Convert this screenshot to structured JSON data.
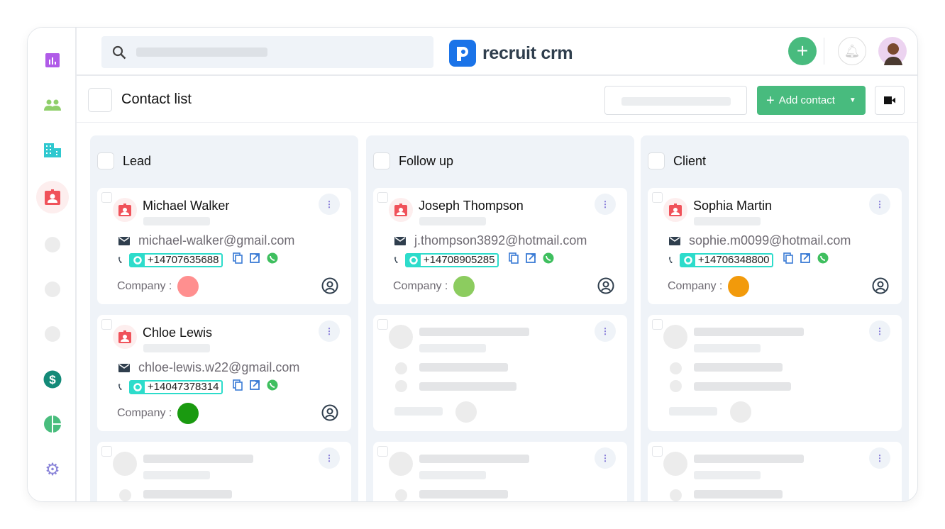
{
  "app": {
    "name": "recruit crm"
  },
  "sidebar": {
    "items": [
      {
        "icon": "bar-chart-icon",
        "color": "#b05be8"
      },
      {
        "icon": "people-icon",
        "color": "#8fcf6a"
      },
      {
        "icon": "building-icon",
        "color": "#2fc8cf"
      },
      {
        "icon": "contact-badge-icon",
        "color": "#f0525a",
        "active": true
      },
      {
        "icon": "placeholder-icon"
      },
      {
        "icon": "placeholder-icon"
      },
      {
        "icon": "placeholder-icon"
      },
      {
        "icon": "dollar-icon",
        "color": "#138a78"
      },
      {
        "icon": "pie-chart-icon",
        "color": "#49bd7d"
      },
      {
        "icon": "gear-icon",
        "color": "#8a84d9"
      }
    ]
  },
  "toolbar": {
    "title": "Contact list",
    "add_contact_label": "Add contact"
  },
  "colors": {
    "accent": "#48bb7e",
    "brand": "#1a73e8",
    "phone": "#2ddccb",
    "danger": "#f0525a"
  },
  "columns": [
    {
      "title": "Lead",
      "cards": [
        {
          "name": "Michael Walker",
          "email": "michael-walker@gmail.com",
          "phone": "+14707635688",
          "company_label": "Company :",
          "company_color": "#ff8f8f"
        },
        {
          "name": "Chloe Lewis",
          "email": "chloe-lewis.w22@gmail.com",
          "phone": "+14047378314",
          "company_label": "Company :",
          "company_color": "#1a9a10"
        }
      ]
    },
    {
      "title": "Follow up",
      "cards": [
        {
          "name": "Joseph Thompson",
          "email": "j.thompson3892@hotmail.com",
          "phone": "+14708905285",
          "company_label": "Company :",
          "company_color": "#8ccc5f"
        }
      ]
    },
    {
      "title": "Client",
      "cards": [
        {
          "name": "Sophia Martin",
          "email": "sophie.m0099@hotmail.com",
          "phone": "+14706348800",
          "company_label": "Company :",
          "company_color": "#f29a0b"
        }
      ]
    }
  ]
}
